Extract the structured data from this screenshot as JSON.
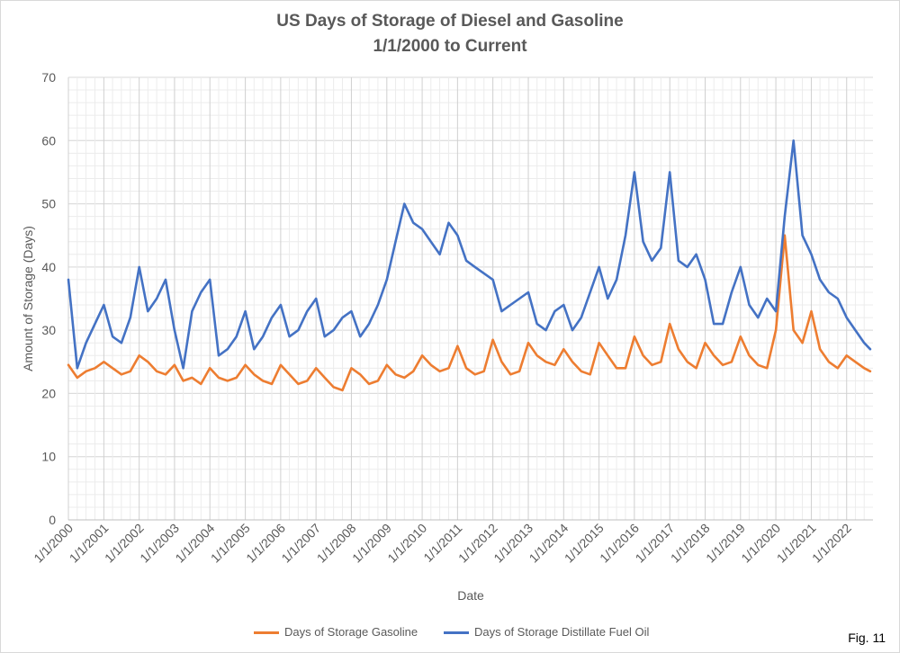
{
  "chart_data": {
    "type": "line",
    "title": "US Days of Storage of Diesel and Gasoline",
    "subtitle": "1/1/2000 to Current",
    "xlabel": "Date",
    "ylabel": "Amount of Storage (Days)",
    "ylim": [
      0,
      70
    ],
    "yticks": [
      0,
      10,
      20,
      30,
      40,
      50,
      60,
      70
    ],
    "xlim": [
      "2000-01-01",
      "2022-09-30"
    ],
    "xticks": [
      "1/1/2000",
      "1/1/2001",
      "1/1/2002",
      "1/1/2003",
      "1/1/2004",
      "1/1/2005",
      "1/1/2006",
      "1/1/2007",
      "1/1/2008",
      "1/1/2009",
      "1/1/2010",
      "1/1/2011",
      "1/1/2012",
      "1/1/2013",
      "1/1/2014",
      "1/1/2015",
      "1/1/2016",
      "1/1/2017",
      "1/1/2018",
      "1/1/2019",
      "1/1/2020",
      "1/1/2021",
      "1/1/2022"
    ],
    "grid": true,
    "legend_position": "bottom",
    "series": [
      {
        "name": "Days of Storage Gasoline",
        "color": "#ED7D31",
        "x": [
          "2000-01",
          "2000-04",
          "2000-07",
          "2000-10",
          "2001-01",
          "2001-04",
          "2001-07",
          "2001-10",
          "2002-01",
          "2002-04",
          "2002-07",
          "2002-10",
          "2003-01",
          "2003-04",
          "2003-07",
          "2003-10",
          "2004-01",
          "2004-04",
          "2004-07",
          "2004-10",
          "2005-01",
          "2005-04",
          "2005-07",
          "2005-10",
          "2006-01",
          "2006-04",
          "2006-07",
          "2006-10",
          "2007-01",
          "2007-04",
          "2007-07",
          "2007-10",
          "2008-01",
          "2008-04",
          "2008-07",
          "2008-10",
          "2009-01",
          "2009-04",
          "2009-07",
          "2009-10",
          "2010-01",
          "2010-04",
          "2010-07",
          "2010-10",
          "2011-01",
          "2011-04",
          "2011-07",
          "2011-10",
          "2012-01",
          "2012-04",
          "2012-07",
          "2012-10",
          "2013-01",
          "2013-04",
          "2013-07",
          "2013-10",
          "2014-01",
          "2014-04",
          "2014-07",
          "2014-10",
          "2015-01",
          "2015-04",
          "2015-07",
          "2015-10",
          "2016-01",
          "2016-04",
          "2016-07",
          "2016-10",
          "2017-01",
          "2017-04",
          "2017-07",
          "2017-10",
          "2018-01",
          "2018-04",
          "2018-07",
          "2018-10",
          "2019-01",
          "2019-04",
          "2019-07",
          "2019-10",
          "2020-01",
          "2020-04",
          "2020-07",
          "2020-10",
          "2021-01",
          "2021-04",
          "2021-07",
          "2021-10",
          "2022-01",
          "2022-04",
          "2022-07",
          "2022-09"
        ],
        "values": [
          24.5,
          22.5,
          23.5,
          24,
          25,
          24,
          23,
          23.5,
          26,
          25,
          23.5,
          23,
          24.5,
          22,
          22.5,
          21.5,
          24,
          22.5,
          22,
          22.5,
          24.5,
          23,
          22,
          21.5,
          24.5,
          23,
          21.5,
          22,
          24,
          22.5,
          21,
          20.5,
          24,
          23,
          21.5,
          22,
          24.5,
          23,
          22.5,
          23.5,
          26,
          24.5,
          23.5,
          24,
          27.5,
          24,
          23,
          23.5,
          28.5,
          25,
          23,
          23.5,
          28,
          26,
          25,
          24.5,
          27,
          25,
          23.5,
          23,
          28,
          26,
          24,
          24,
          29,
          26,
          24.5,
          25,
          31,
          27,
          25,
          24,
          28,
          26,
          24.5,
          25,
          29,
          26,
          24.5,
          24,
          30,
          45,
          30,
          28,
          33,
          27,
          25,
          24,
          26,
          25,
          24,
          23.5
        ]
      },
      {
        "name": "Days of Storage Distillate Fuel Oil",
        "color": "#4472C4",
        "x": [
          "2000-01",
          "2000-04",
          "2000-07",
          "2000-10",
          "2001-01",
          "2001-04",
          "2001-07",
          "2001-10",
          "2002-01",
          "2002-04",
          "2002-07",
          "2002-10",
          "2003-01",
          "2003-04",
          "2003-07",
          "2003-10",
          "2004-01",
          "2004-04",
          "2004-07",
          "2004-10",
          "2005-01",
          "2005-04",
          "2005-07",
          "2005-10",
          "2006-01",
          "2006-04",
          "2006-07",
          "2006-10",
          "2007-01",
          "2007-04",
          "2007-07",
          "2007-10",
          "2008-01",
          "2008-04",
          "2008-07",
          "2008-10",
          "2009-01",
          "2009-04",
          "2009-07",
          "2009-10",
          "2010-01",
          "2010-04",
          "2010-07",
          "2010-10",
          "2011-01",
          "2011-04",
          "2011-07",
          "2011-10",
          "2012-01",
          "2012-04",
          "2012-07",
          "2012-10",
          "2013-01",
          "2013-04",
          "2013-07",
          "2013-10",
          "2014-01",
          "2014-04",
          "2014-07",
          "2014-10",
          "2015-01",
          "2015-04",
          "2015-07",
          "2015-10",
          "2016-01",
          "2016-04",
          "2016-07",
          "2016-10",
          "2017-01",
          "2017-04",
          "2017-07",
          "2017-10",
          "2018-01",
          "2018-04",
          "2018-07",
          "2018-10",
          "2019-01",
          "2019-04",
          "2019-07",
          "2019-10",
          "2020-01",
          "2020-04",
          "2020-07",
          "2020-10",
          "2021-01",
          "2021-04",
          "2021-07",
          "2021-10",
          "2022-01",
          "2022-04",
          "2022-07",
          "2022-09"
        ],
        "values": [
          38,
          24,
          28,
          31,
          34,
          29,
          28,
          32,
          40,
          33,
          35,
          38,
          30,
          24,
          33,
          36,
          38,
          26,
          27,
          29,
          33,
          27,
          29,
          32,
          34,
          29,
          30,
          33,
          35,
          29,
          30,
          32,
          33,
          29,
          31,
          34,
          38,
          44,
          50,
          47,
          46,
          44,
          42,
          47,
          45,
          41,
          40,
          39,
          38,
          33,
          34,
          35,
          36,
          31,
          30,
          33,
          34,
          30,
          32,
          36,
          40,
          35,
          38,
          45,
          55,
          44,
          41,
          43,
          55,
          41,
          40,
          42,
          38,
          31,
          31,
          36,
          40,
          34,
          32,
          35,
          33,
          48,
          60,
          45,
          42,
          38,
          36,
          35,
          32,
          30,
          28,
          27
        ]
      }
    ]
  },
  "legend": {
    "gasoline": "Days of Storage Gasoline",
    "distillate": "Days of Storage Distillate Fuel Oil"
  },
  "figure_label": "Fig. 11",
  "colors": {
    "gasoline": "#ED7D31",
    "distillate": "#4472C4",
    "grid": "#d9d9d9",
    "text": "#595959"
  }
}
